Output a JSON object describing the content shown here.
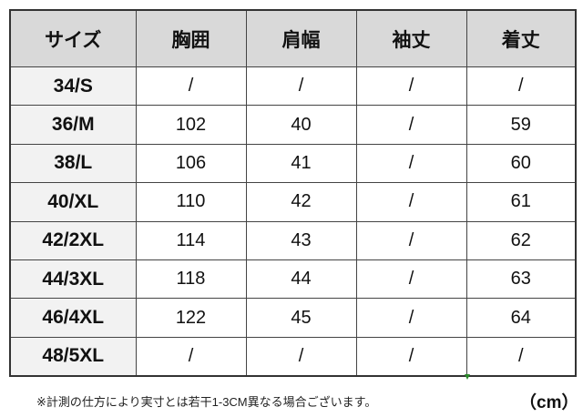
{
  "table": {
    "headers": [
      "サイズ",
      "胸囲",
      "肩幅",
      "袖丈",
      "着丈"
    ],
    "rows": [
      [
        "34/S",
        "/",
        "/",
        "/",
        "/"
      ],
      [
        "36/M",
        "102",
        "40",
        "/",
        "59"
      ],
      [
        "38/L",
        "106",
        "41",
        "/",
        "60"
      ],
      [
        "40/XL",
        "110",
        "42",
        "/",
        "61"
      ],
      [
        "42/2XL",
        "114",
        "43",
        "/",
        "62"
      ],
      [
        "44/3XL",
        "118",
        "44",
        "/",
        "63"
      ],
      [
        "46/4XL",
        "122",
        "45",
        "/",
        "64"
      ],
      [
        "48/5XL",
        "/",
        "/",
        "/",
        "/"
      ]
    ]
  },
  "footer": {
    "note": "※計測の仕方により実寸とは若干1-3CM異なる場合ございます。",
    "unit": "（cm）"
  }
}
